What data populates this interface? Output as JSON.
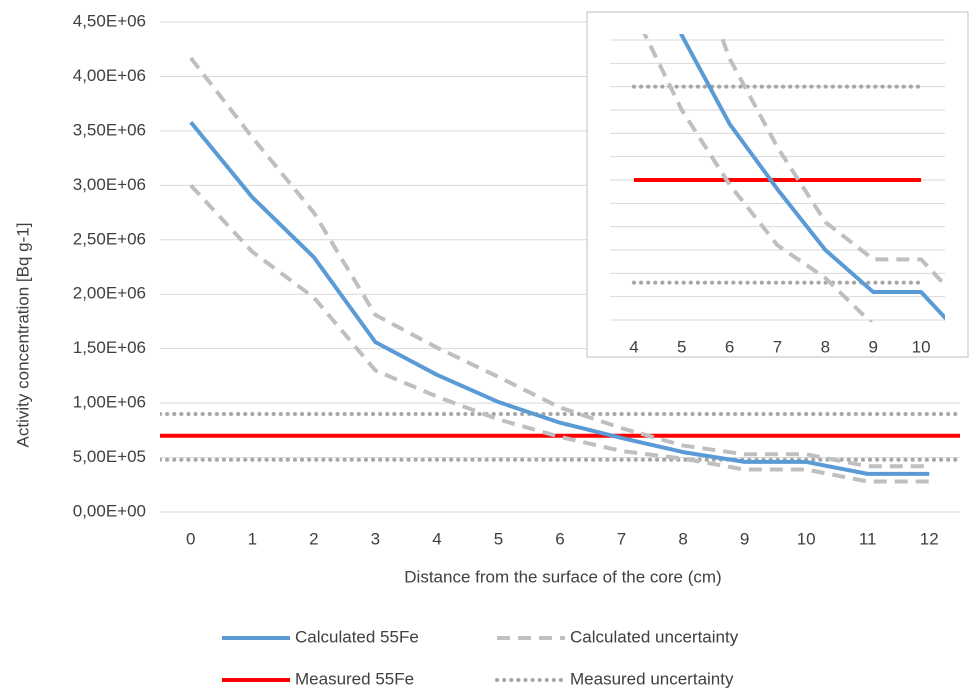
{
  "chart_data": [
    {
      "type": "line",
      "y_label": "Activity concentration [Bq g-1]",
      "x_label": "Distance from the surface of the core (cm)",
      "categories": [
        "0",
        "1",
        "2",
        "3",
        "4",
        "5",
        "6",
        "7",
        "8",
        "9",
        "10",
        "11",
        "12"
      ],
      "series": [
        {
          "name": "Calculated 55Fe",
          "color": "#5b9bd5",
          "style": "solid",
          "values": [
            3580000,
            2890000,
            2340000,
            1560000,
            1260000,
            1010000,
            820000,
            680000,
            550000,
            460000,
            460000,
            350000,
            350000
          ]
        },
        {
          "name": "Calculated uncertainty",
          "color": "#bfbfbf",
          "style": "dashed",
          "upper": [
            4170000,
            3440000,
            2750000,
            1810000,
            1510000,
            1240000,
            960000,
            770000,
            610000,
            530000,
            530000,
            420000,
            420000
          ],
          "lower": [
            3000000,
            2390000,
            1970000,
            1300000,
            1060000,
            850000,
            690000,
            560000,
            490000,
            390000,
            390000,
            280000,
            280000
          ]
        },
        {
          "name": "Measured 55Fe",
          "color": "#ff0000",
          "style": "solid",
          "value": 700000
        },
        {
          "name": "Measured uncertainty",
          "color": "#a6a6a6",
          "style": "dotted",
          "upper": 900000,
          "lower": 480000
        }
      ],
      "ylim": [
        0,
        4500000
      ],
      "yticks": [
        {
          "value": 0,
          "label": "0,00E+00"
        },
        {
          "value": 500000,
          "label": "5,00E+05"
        },
        {
          "value": 1000000,
          "label": "1,00E+06"
        },
        {
          "value": 1500000,
          "label": "1,50E+06"
        },
        {
          "value": 2000000,
          "label": "2,00E+06"
        },
        {
          "value": 2500000,
          "label": "2,50E+06"
        },
        {
          "value": 3000000,
          "label": "3,00E+06"
        },
        {
          "value": 3500000,
          "label": "3,50E+06"
        },
        {
          "value": 4000000,
          "label": "4,00E+06"
        },
        {
          "value": 4500000,
          "label": "4,50E+06"
        }
      ],
      "grid": true,
      "legend": "bottom"
    },
    {
      "type": "line",
      "categories": [
        "4",
        "5",
        "6",
        "7",
        "8",
        "9",
        "10"
      ],
      "ylim": [
        400000,
        1000000
      ],
      "yticks": [
        400000,
        450000,
        500000,
        550000,
        600000,
        650000,
        700000,
        750000,
        800000,
        850000,
        900000,
        950000,
        1000000
      ],
      "grid": true
    }
  ]
}
